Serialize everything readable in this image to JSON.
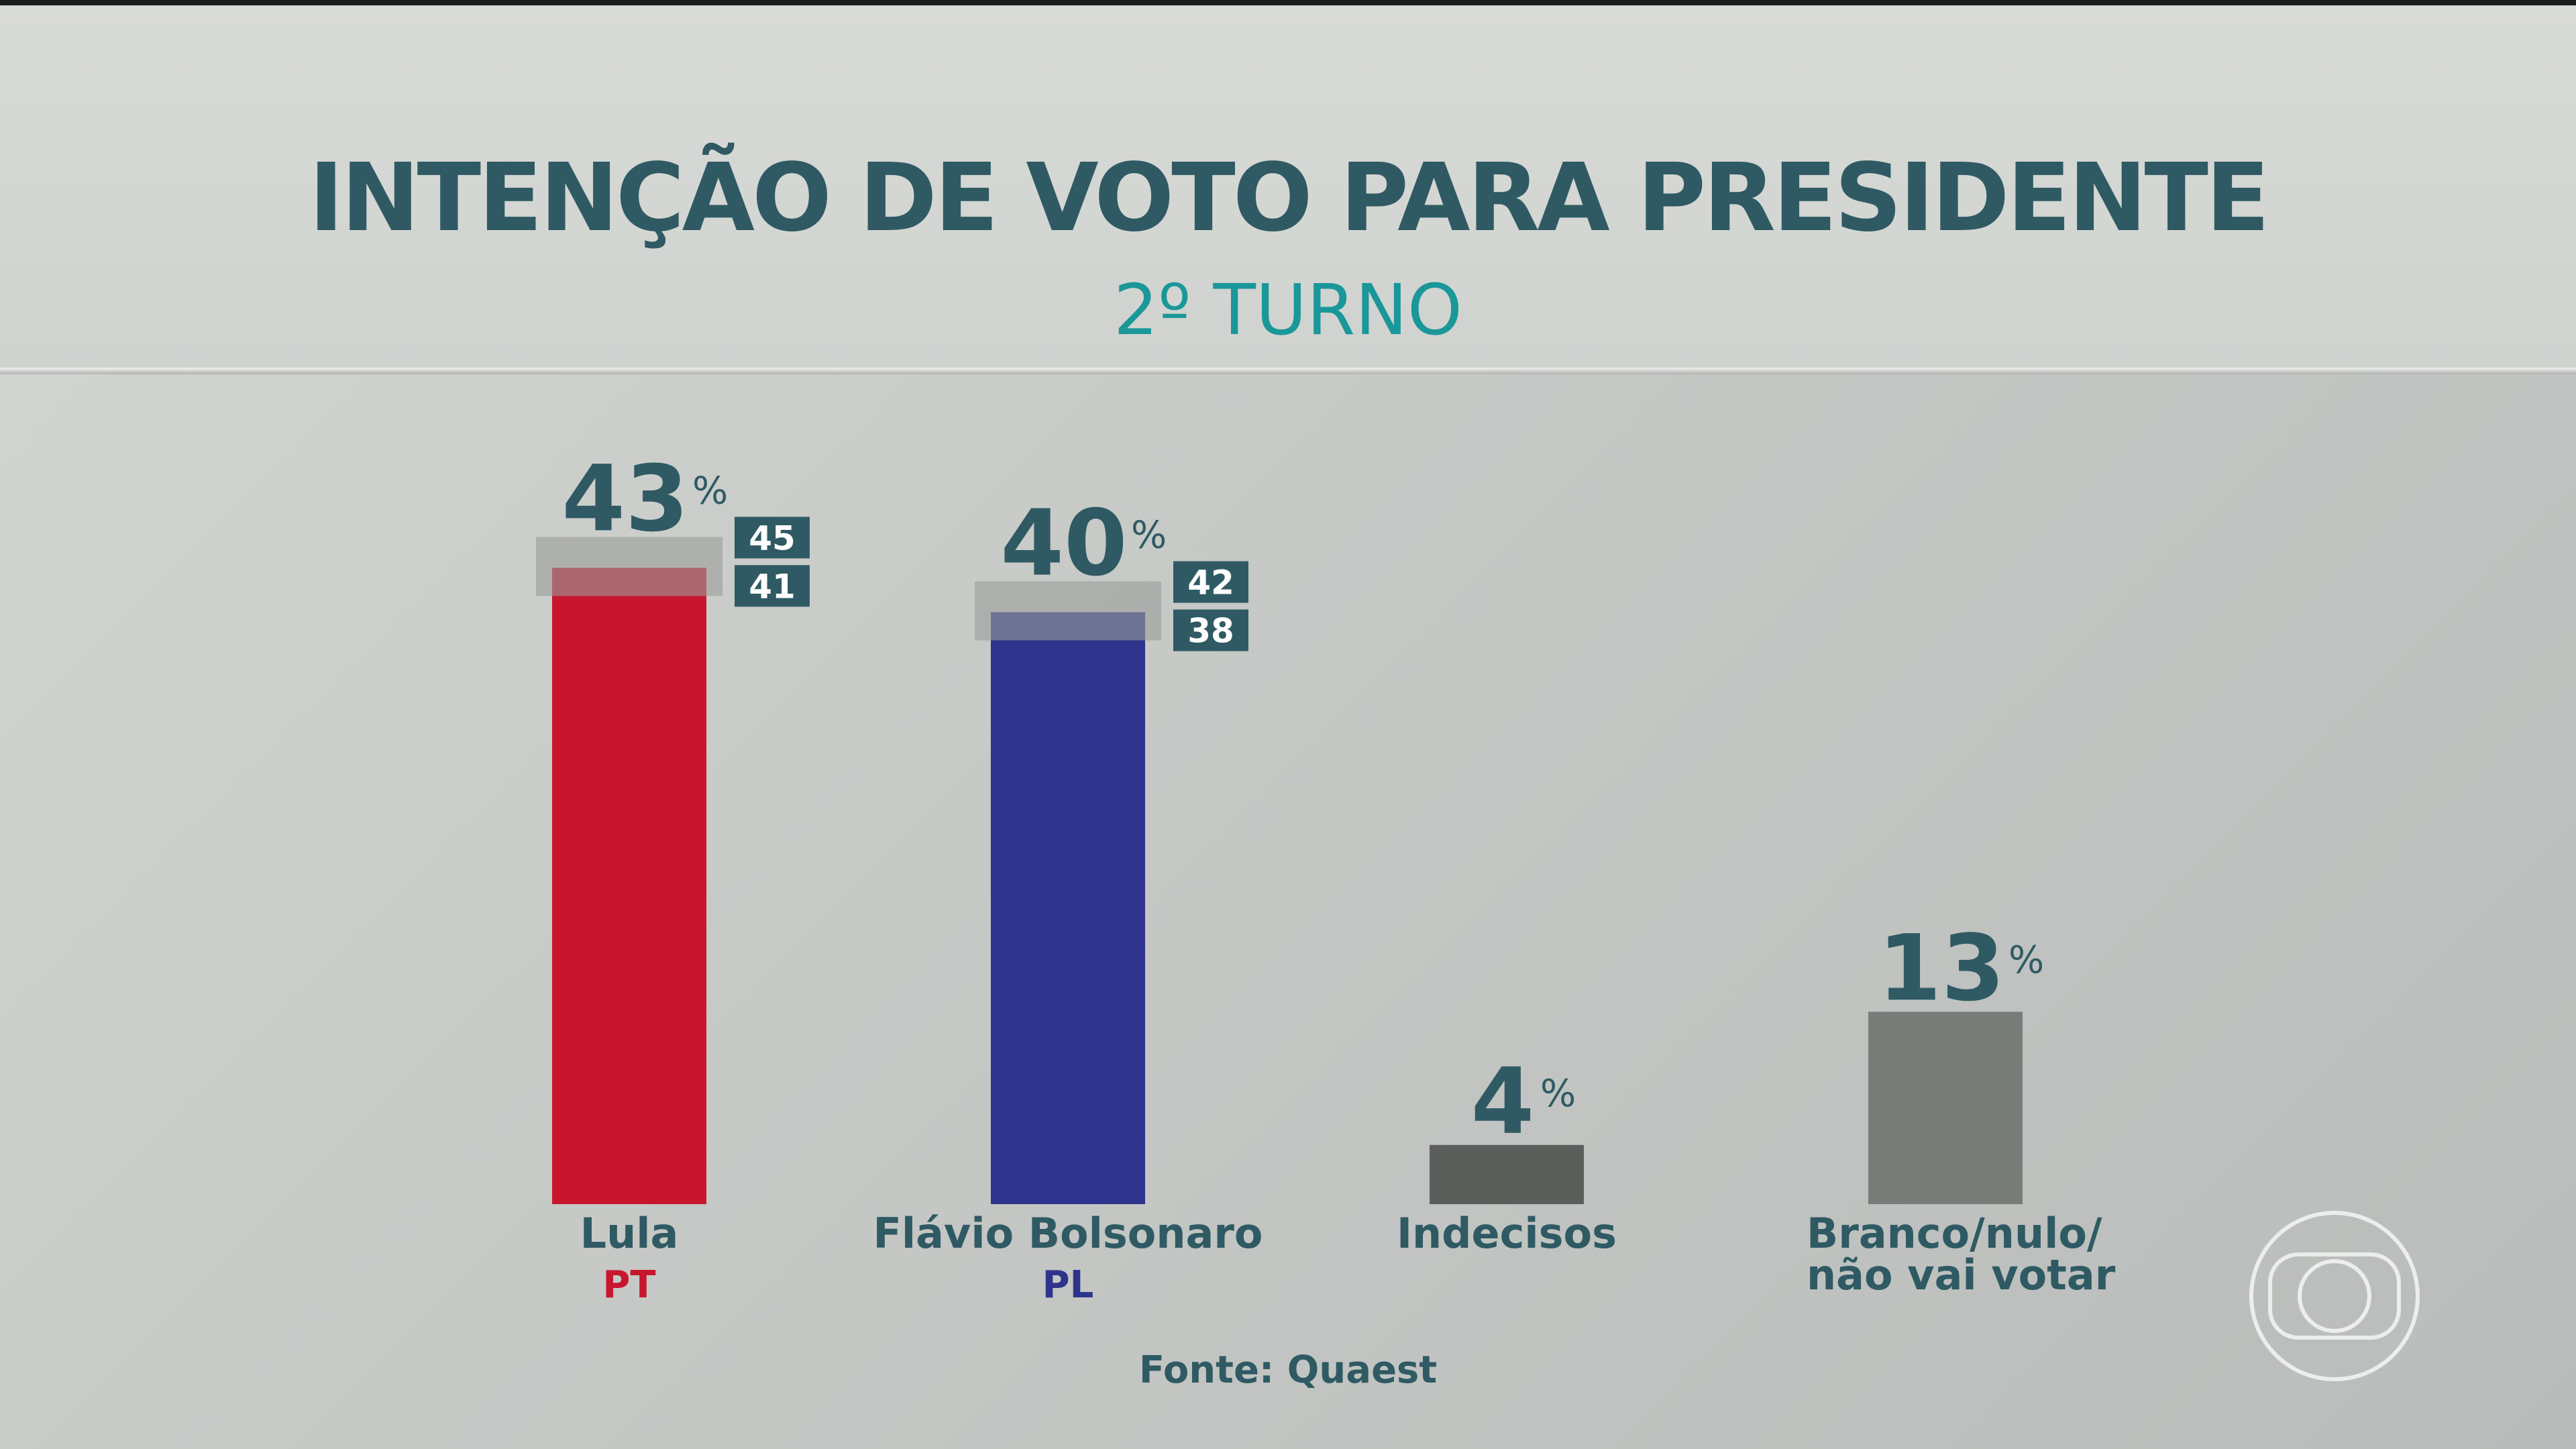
{
  "header": {
    "title": "INTENÇÃO DE VOTO PARA PRESIDENTE",
    "subtitle": "2º TURNO"
  },
  "source": "Fonte: Quaest",
  "brand": {
    "logo_icon": "tv-globo-logo-icon"
  },
  "chart_data": {
    "type": "bar",
    "title": "INTENÇÃO DE VOTO PARA PRESIDENTE",
    "subtitle": "2º TURNO",
    "unit": "%",
    "ylim": [
      0,
      50
    ],
    "grid": false,
    "legend": "none",
    "bars": [
      {
        "label": [
          "Lula"
        ],
        "party": "PT",
        "value": 43,
        "pct": "%",
        "range": [
          41,
          45
        ],
        "color": "#c8162f",
        "party_color": "#c8162f"
      },
      {
        "label": [
          "Flávio Bolsonaro"
        ],
        "party": "PL",
        "value": 40,
        "pct": "%",
        "range": [
          38,
          42
        ],
        "color": "#2e348c",
        "party_color": "#2e348c"
      },
      {
        "label": [
          "Indecisos"
        ],
        "party": "",
        "value": 4,
        "pct": "%",
        "range": null,
        "color": "#5c5e5c",
        "party_color": ""
      },
      {
        "label": [
          "Branco/nulo/",
          "não vai votar"
        ],
        "party": "",
        "value": 13,
        "pct": "%",
        "range": null,
        "color": "#7a7c79",
        "party_color": ""
      }
    ]
  }
}
